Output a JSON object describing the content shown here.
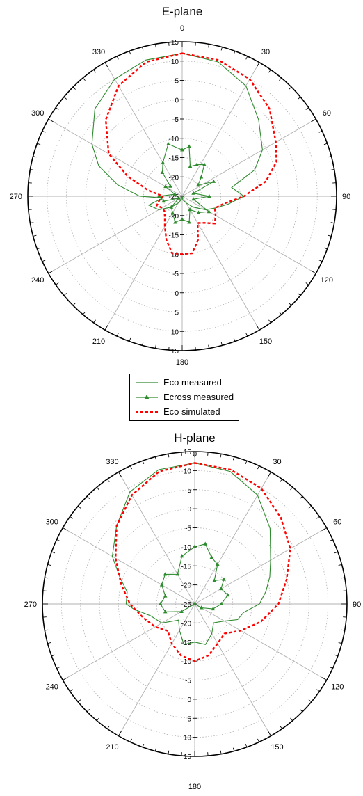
{
  "chart_data": [
    {
      "type": "polar-line",
      "title": "E-plane",
      "angle_labels": [
        "0",
        "30",
        "60",
        "90",
        "120",
        "150",
        "180",
        "210",
        "240",
        "270",
        "300",
        "330"
      ],
      "radial_tick_labels": [
        "15",
        "10",
        "5",
        "0",
        "-5",
        "-10",
        "-15",
        "-20",
        "-25"
      ],
      "radial_range_db": [
        -25,
        15
      ],
      "grid": true,
      "series": [
        {
          "name": "Eco measured",
          "color": "#2e8b2e",
          "style": "solid",
          "points": [
            [
              0,
              12
            ],
            [
              15,
              11
            ],
            [
              30,
              8
            ],
            [
              45,
              3
            ],
            [
              60,
              -1
            ],
            [
              70,
              -5
            ],
            [
              80,
              -12
            ],
            [
              90,
              -9
            ],
            [
              100,
              -13
            ],
            [
              110,
              -16
            ],
            [
              120,
              -18
            ],
            [
              135,
              -21
            ],
            [
              150,
              -23
            ],
            [
              170,
              -24
            ],
            [
              180,
              -25
            ],
            [
              195,
              -24
            ],
            [
              210,
              -23
            ],
            [
              225,
              -21
            ],
            [
              240,
              -18
            ],
            [
              255,
              -16
            ],
            [
              265,
              -20
            ],
            [
              270,
              -14
            ],
            [
              280,
              -8
            ],
            [
              290,
              -2
            ],
            [
              300,
              2
            ],
            [
              315,
              7
            ],
            [
              330,
              10
            ],
            [
              345,
              11.5
            ],
            [
              360,
              12
            ]
          ]
        },
        {
          "name": "Ecross measured",
          "color": "#2e8b2e",
          "style": "solid-triangle",
          "points": [
            [
              0,
              -13
            ],
            [
              8,
              -12
            ],
            [
              15,
              -17
            ],
            [
              25,
              -16
            ],
            [
              35,
              -15
            ],
            [
              45,
              -18
            ],
            [
              55,
              -20
            ],
            [
              65,
              -16
            ],
            [
              75,
              -22
            ],
            [
              90,
              -18
            ],
            [
              105,
              -22
            ],
            [
              120,
              -17
            ],
            [
              135,
              -19
            ],
            [
              150,
              -21
            ],
            [
              165,
              -18
            ],
            [
              180,
              -19
            ],
            [
              195,
              -18
            ],
            [
              210,
              -20
            ],
            [
              225,
              -21
            ],
            [
              240,
              -24
            ],
            [
              255,
              -20
            ],
            [
              270,
              -19
            ],
            [
              285,
              -23
            ],
            [
              300,
              -20
            ],
            [
              310,
              -21
            ],
            [
              320,
              -17
            ],
            [
              330,
              -15
            ],
            [
              345,
              -11
            ],
            [
              360,
              -13
            ]
          ]
        },
        {
          "name": "Eco simulated",
          "color": "#ff0000",
          "style": "dashed",
          "points": [
            [
              0,
              12
            ],
            [
              15,
              11.5
            ],
            [
              30,
              10
            ],
            [
              45,
              7
            ],
            [
              60,
              3
            ],
            [
              70,
              1
            ],
            [
              80,
              -3
            ],
            [
              90,
              -9
            ],
            [
              100,
              -14
            ],
            [
              110,
              -16
            ],
            [
              120,
              -15
            ],
            [
              130,
              -14
            ],
            [
              140,
              -16
            ],
            [
              150,
              -17
            ],
            [
              160,
              -13
            ],
            [
              170,
              -10
            ],
            [
              180,
              -10
            ],
            [
              190,
              -10
            ],
            [
              200,
              -13
            ],
            [
              210,
              -16
            ],
            [
              220,
              -18
            ],
            [
              230,
              -19
            ],
            [
              240,
              -19
            ],
            [
              250,
              -18
            ],
            [
              260,
              -19
            ],
            [
              270,
              -20
            ],
            [
              280,
              -16
            ],
            [
              290,
              -10
            ],
            [
              300,
              -3
            ],
            [
              315,
              3
            ],
            [
              330,
              8
            ],
            [
              345,
              11
            ],
            [
              360,
              12
            ]
          ]
        }
      ]
    },
    {
      "type": "polar-line",
      "title": "H-plane",
      "angle_labels": [
        "0",
        "30",
        "60",
        "90",
        "120",
        "150",
        "180",
        "210",
        "240",
        "270",
        "300",
        "330"
      ],
      "radial_tick_labels": [
        "15",
        "10",
        "5",
        "0",
        "-5",
        "-10",
        "-15",
        "-20",
        "-25"
      ],
      "radial_range_db": [
        -25,
        15
      ],
      "grid": true,
      "series": [
        {
          "name": "Eco measured",
          "color": "#2e8b2e",
          "style": "solid",
          "points": [
            [
              0,
              12
            ],
            [
              15,
              11
            ],
            [
              30,
              8
            ],
            [
              45,
              3
            ],
            [
              60,
              -2
            ],
            [
              70,
              -4
            ],
            [
              80,
              -6
            ],
            [
              90,
              -8
            ],
            [
              100,
              -12
            ],
            [
              110,
              -13
            ],
            [
              120,
              -16
            ],
            [
              135,
              -18
            ],
            [
              150,
              -16
            ],
            [
              165,
              -14
            ],
            [
              180,
              -15
            ],
            [
              195,
              -14
            ],
            [
              210,
              -17
            ],
            [
              225,
              -19
            ],
            [
              240,
              -15
            ],
            [
              255,
              -13
            ],
            [
              265,
              -9
            ],
            [
              270,
              -7
            ],
            [
              280,
              -7
            ],
            [
              290,
              -4
            ],
            [
              300,
              0
            ],
            [
              315,
              4
            ],
            [
              330,
              9
            ],
            [
              345,
              11.5
            ],
            [
              360,
              12
            ]
          ]
        },
        {
          "name": "Ecross measured",
          "color": "#2e8b2e",
          "style": "solid-triangle",
          "points": [
            [
              0,
              -10
            ],
            [
              10,
              -9
            ],
            [
              20,
              -12
            ],
            [
              30,
              -13
            ],
            [
              40,
              -17
            ],
            [
              50,
              -15
            ],
            [
              60,
              -17
            ],
            [
              75,
              -16
            ],
            [
              90,
              -18
            ],
            [
              105,
              -20
            ],
            [
              120,
              -23
            ],
            [
              150,
              -25
            ],
            [
              180,
              -25
            ],
            [
              210,
              -25
            ],
            [
              240,
              -21
            ],
            [
              255,
              -17
            ],
            [
              270,
              -16
            ],
            [
              285,
              -17
            ],
            [
              300,
              -15
            ],
            [
              315,
              -14
            ],
            [
              330,
              -16
            ],
            [
              345,
              -12
            ],
            [
              360,
              -10
            ]
          ]
        },
        {
          "name": "Eco simulated",
          "color": "#ff0000",
          "style": "dashed",
          "points": [
            [
              0,
              12
            ],
            [
              15,
              11.5
            ],
            [
              30,
              10
            ],
            [
              45,
              7
            ],
            [
              60,
              4
            ],
            [
              75,
              0
            ],
            [
              90,
              -3
            ],
            [
              105,
              -7
            ],
            [
              120,
              -11
            ],
            [
              135,
              -14
            ],
            [
              150,
              -13
            ],
            [
              165,
              -11
            ],
            [
              180,
              -10
            ],
            [
              195,
              -11
            ],
            [
              210,
              -13
            ],
            [
              225,
              -15
            ],
            [
              240,
              -13
            ],
            [
              255,
              -11
            ],
            [
              270,
              -8
            ],
            [
              285,
              -5
            ],
            [
              300,
              -1
            ],
            [
              315,
              4
            ],
            [
              330,
              8
            ],
            [
              345,
              11
            ],
            [
              360,
              12
            ]
          ]
        }
      ]
    }
  ],
  "legend": {
    "items": [
      {
        "label": "Eco measured"
      },
      {
        "label": "Ecross measured"
      },
      {
        "label": "Eco simulated"
      }
    ]
  }
}
